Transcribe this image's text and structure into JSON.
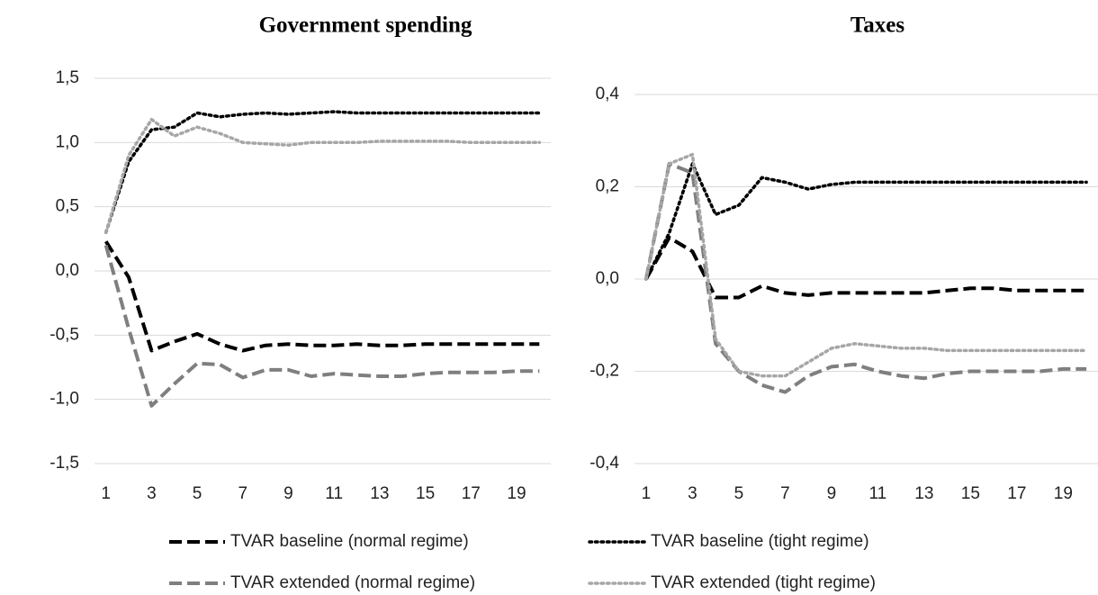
{
  "chart_data": [
    {
      "type": "line",
      "title": "Government spending",
      "categories": [
        1,
        null,
        3,
        null,
        5,
        null,
        7,
        null,
        9,
        null,
        11,
        null,
        13,
        null,
        15,
        null,
        17,
        null,
        19,
        null
      ],
      "ylim": [
        -1.5,
        1.5
      ],
      "yticks": [
        {
          "value": -1.5,
          "label": "-1,5"
        },
        {
          "value": -1,
          "label": "-1,0"
        },
        {
          "value": -0.5,
          "label": "-0,5"
        },
        {
          "value": 0,
          "label": "0,0"
        },
        {
          "value": 0.5,
          "label": "0,5"
        },
        {
          "value": 1,
          "label": "1,0"
        },
        {
          "value": 1.5,
          "label": "1,5"
        }
      ],
      "grid": true,
      "series": [
        {
          "name": "TVAR baseline (normal regime)",
          "color": "#000000",
          "style": "dashed",
          "values": [
            0.23,
            -0.05,
            -0.62,
            -0.55,
            -0.49,
            -0.57,
            -0.62,
            -0.58,
            -0.57,
            -0.58,
            -0.58,
            -0.57,
            -0.58,
            -0.58,
            -0.57,
            -0.57,
            -0.57,
            -0.57,
            -0.57,
            -0.57
          ]
        },
        {
          "name": "TVAR baseline (tight regime)",
          "color": "#000000",
          "style": "dotted",
          "values": [
            0.3,
            0.85,
            1.1,
            1.12,
            1.23,
            1.2,
            1.22,
            1.23,
            1.22,
            1.23,
            1.24,
            1.23,
            1.23,
            1.23,
            1.23,
            1.23,
            1.23,
            1.23,
            1.23,
            1.23
          ]
        },
        {
          "name": "TVAR extended (normal regime)",
          "color": "#7f7f7f",
          "style": "dashed",
          "values": [
            0.2,
            -0.45,
            -1.05,
            -0.88,
            -0.72,
            -0.73,
            -0.83,
            -0.77,
            -0.77,
            -0.82,
            -0.8,
            -0.81,
            -0.82,
            -0.82,
            -0.8,
            -0.79,
            -0.79,
            -0.79,
            -0.78,
            -0.78
          ]
        },
        {
          "name": "TVAR extended (tight regime)",
          "color": "#a6a6a6",
          "style": "dotted",
          "values": [
            0.3,
            0.9,
            1.18,
            1.05,
            1.12,
            1.07,
            1.0,
            0.99,
            0.98,
            1.0,
            1.0,
            1.0,
            1.01,
            1.01,
            1.01,
            1.01,
            1.0,
            1.0,
            1.0,
            1.0
          ]
        }
      ]
    },
    {
      "type": "line",
      "title": "Taxes",
      "categories": [
        1,
        null,
        3,
        null,
        5,
        null,
        7,
        null,
        9,
        null,
        11,
        null,
        13,
        null,
        15,
        null,
        17,
        null,
        19,
        null
      ],
      "ylim": [
        -0.4,
        0.4
      ],
      "yticks": [
        {
          "value": -0.4,
          "label": "-0,4"
        },
        {
          "value": -0.2,
          "label": "-0,2"
        },
        {
          "value": 0,
          "label": "0,0"
        },
        {
          "value": 0.2,
          "label": "0,2"
        },
        {
          "value": 0.4,
          "label": "0,4"
        }
      ],
      "grid": true,
      "series": [
        {
          "color": "#000000",
          "style": "dashed",
          "values": [
            0,
            0.09,
            0.06,
            -0.04,
            -0.04,
            -0.015,
            -0.03,
            -0.035,
            -0.03,
            -0.03,
            -0.03,
            -0.03,
            -0.03,
            -0.025,
            -0.02,
            -0.02,
            -0.025,
            -0.025,
            -0.025,
            -0.025
          ]
        },
        {
          "color": "#000000",
          "style": "dotted",
          "values": [
            0,
            0.1,
            0.25,
            0.14,
            0.16,
            0.22,
            0.21,
            0.195,
            0.205,
            0.21,
            0.21,
            0.21,
            0.21,
            0.21,
            0.21,
            0.21,
            0.21,
            0.21,
            0.21,
            0.21
          ]
        },
        {
          "color": "#7f7f7f",
          "style": "dashed",
          "values": [
            0,
            0.25,
            0.23,
            -0.14,
            -0.2,
            -0.23,
            -0.245,
            -0.21,
            -0.19,
            -0.185,
            -0.2,
            -0.21,
            -0.215,
            -0.205,
            -0.2,
            -0.2,
            -0.2,
            -0.2,
            -0.195,
            -0.195
          ]
        },
        {
          "color": "#a6a6a6",
          "style": "dotted",
          "values": [
            0,
            0.25,
            0.27,
            -0.13,
            -0.2,
            -0.21,
            -0.21,
            -0.18,
            -0.15,
            -0.14,
            -0.145,
            -0.15,
            -0.15,
            -0.155,
            -0.155,
            -0.155,
            -0.155,
            -0.155,
            -0.155,
            -0.155
          ]
        }
      ]
    }
  ]
}
